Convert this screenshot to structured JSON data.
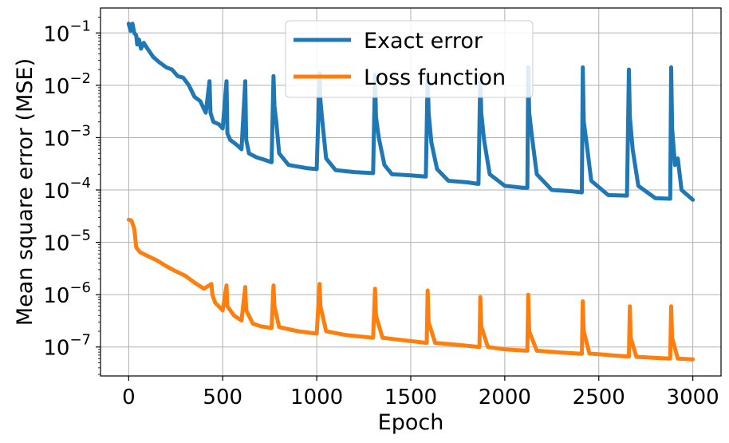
{
  "chart_data": {
    "type": "line",
    "title": "",
    "xlabel": "Epoch",
    "ylabel": "Mean square error (MSE)",
    "y_scale": "log",
    "grid": true,
    "legend_position": "top-center",
    "xlim": [
      -150,
      3150
    ],
    "ylim": [
      2.8e-08,
      0.3
    ],
    "x_ticks": [
      0,
      500,
      1000,
      1500,
      2000,
      2500,
      3000
    ],
    "x_tick_labels": [
      "0",
      "500",
      "1000",
      "1500",
      "2000",
      "2500",
      "3000"
    ],
    "y_ticks": [
      1e-07,
      1e-06,
      1e-05,
      0.0001,
      0.001,
      0.01,
      0.1
    ],
    "y_tick_labels": [
      {
        "base": "10",
        "exp": "−7"
      },
      {
        "base": "10",
        "exp": "−6"
      },
      {
        "base": "10",
        "exp": "−5"
      },
      {
        "base": "10",
        "exp": "−4"
      },
      {
        "base": "10",
        "exp": "−3"
      },
      {
        "base": "10",
        "exp": "−2"
      },
      {
        "base": "10",
        "exp": "−1"
      }
    ],
    "series": [
      {
        "name": "Exact error",
        "color": "#1f77b4",
        "points": [
          [
            0,
            0.15
          ],
          [
            10,
            0.11
          ],
          [
            20,
            0.15
          ],
          [
            30,
            0.1
          ],
          [
            40,
            0.09
          ],
          [
            45,
            0.06
          ],
          [
            55,
            0.075
          ],
          [
            65,
            0.05
          ],
          [
            80,
            0.065
          ],
          [
            100,
            0.05
          ],
          [
            130,
            0.035
          ],
          [
            160,
            0.028
          ],
          [
            200,
            0.022
          ],
          [
            230,
            0.02
          ],
          [
            260,
            0.015
          ],
          [
            290,
            0.014
          ],
          [
            320,
            0.01
          ],
          [
            350,
            0.006
          ],
          [
            380,
            0.005
          ],
          [
            410,
            0.003
          ],
          [
            430,
            0.012
          ],
          [
            435,
            0.003
          ],
          [
            450,
            0.002
          ],
          [
            480,
            0.0018
          ],
          [
            500,
            0.0015
          ],
          [
            520,
            0.012
          ],
          [
            525,
            0.0012
          ],
          [
            540,
            0.0009
          ],
          [
            560,
            0.0008
          ],
          [
            580,
            0.0007
          ],
          [
            600,
            0.0006
          ],
          [
            620,
            0.012
          ],
          [
            625,
            0.0009
          ],
          [
            640,
            0.0005
          ],
          [
            680,
            0.00042
          ],
          [
            720,
            0.00038
          ],
          [
            760,
            0.00034
          ],
          [
            770,
            0.015
          ],
          [
            775,
            0.004
          ],
          [
            785,
            0.002
          ],
          [
            800,
            0.0005
          ],
          [
            850,
            0.0003
          ],
          [
            900,
            0.00028
          ],
          [
            950,
            0.00026
          ],
          [
            1000,
            0.00025
          ],
          [
            1015,
            0.017
          ],
          [
            1020,
            0.005
          ],
          [
            1030,
            0.002
          ],
          [
            1050,
            0.0004
          ],
          [
            1100,
            0.00024
          ],
          [
            1200,
            0.00022
          ],
          [
            1300,
            0.00021
          ],
          [
            1310,
            0.016
          ],
          [
            1315,
            0.0025
          ],
          [
            1330,
            0.001
          ],
          [
            1360,
            0.0003
          ],
          [
            1400,
            0.0002
          ],
          [
            1500,
            0.00019
          ],
          [
            1580,
            0.00018
          ],
          [
            1590,
            0.016
          ],
          [
            1595,
            0.003
          ],
          [
            1610,
            0.0008
          ],
          [
            1640,
            0.00025
          ],
          [
            1700,
            0.00015
          ],
          [
            1800,
            0.00014
          ],
          [
            1860,
            0.00013
          ],
          [
            1870,
            0.016
          ],
          [
            1875,
            0.003
          ],
          [
            1890,
            0.0009
          ],
          [
            1920,
            0.0002
          ],
          [
            2000,
            0.00012
          ],
          [
            2100,
            0.00011
          ],
          [
            2120,
            0.00011
          ],
          [
            2125,
            0.022
          ],
          [
            2130,
            0.003
          ],
          [
            2145,
            0.001
          ],
          [
            2170,
            0.0002
          ],
          [
            2250,
            0.0001
          ],
          [
            2350,
            9.5e-05
          ],
          [
            2410,
            9e-05
          ],
          [
            2415,
            0.022
          ],
          [
            2420,
            0.002
          ],
          [
            2435,
            0.0008
          ],
          [
            2460,
            0.00015
          ],
          [
            2550,
            8e-05
          ],
          [
            2650,
            7.8e-05
          ],
          [
            2660,
            0.02
          ],
          [
            2665,
            0.0025
          ],
          [
            2680,
            0.0006
          ],
          [
            2710,
            0.00012
          ],
          [
            2800,
            7e-05
          ],
          [
            2880,
            6.8e-05
          ],
          [
            2885,
            0.022
          ],
          [
            2890,
            0.0015
          ],
          [
            2905,
            0.0003
          ],
          [
            2920,
            0.0004
          ],
          [
            2940,
            0.0001
          ],
          [
            3000,
            6.5e-05
          ]
        ]
      },
      {
        "name": "Loss function",
        "color": "#ff7f0e",
        "points": [
          [
            0,
            2.7e-05
          ],
          [
            15,
            2.6e-05
          ],
          [
            30,
            1.8e-05
          ],
          [
            40,
            8e-06
          ],
          [
            60,
            6.5e-06
          ],
          [
            100,
            5.5e-06
          ],
          [
            150,
            4.5e-06
          ],
          [
            200,
            3.5e-06
          ],
          [
            250,
            2.8e-06
          ],
          [
            300,
            2.3e-06
          ],
          [
            350,
            1.7e-06
          ],
          [
            400,
            1.3e-06
          ],
          [
            440,
            1.6e-06
          ],
          [
            445,
            1e-06
          ],
          [
            460,
            7e-07
          ],
          [
            500,
            5e-07
          ],
          [
            520,
            1.5e-06
          ],
          [
            525,
            6e-07
          ],
          [
            560,
            4e-07
          ],
          [
            600,
            3.2e-07
          ],
          [
            620,
            1.4e-06
          ],
          [
            625,
            5e-07
          ],
          [
            660,
            2.8e-07
          ],
          [
            700,
            2.5e-07
          ],
          [
            760,
            2.3e-07
          ],
          [
            770,
            1.5e-06
          ],
          [
            775,
            6e-07
          ],
          [
            800,
            2.4e-07
          ],
          [
            900,
            2e-07
          ],
          [
            1000,
            1.8e-07
          ],
          [
            1015,
            1.6e-06
          ],
          [
            1020,
            6e-07
          ],
          [
            1050,
            2e-07
          ],
          [
            1150,
            1.7e-07
          ],
          [
            1300,
            1.5e-07
          ],
          [
            1310,
            1.3e-06
          ],
          [
            1315,
            4e-07
          ],
          [
            1350,
            1.5e-07
          ],
          [
            1500,
            1.3e-07
          ],
          [
            1585,
            1.2e-07
          ],
          [
            1590,
            1.2e-06
          ],
          [
            1595,
            3e-07
          ],
          [
            1630,
            1.2e-07
          ],
          [
            1750,
            1.1e-07
          ],
          [
            1865,
            1e-07
          ],
          [
            1870,
            9e-07
          ],
          [
            1875,
            2.5e-07
          ],
          [
            1910,
            1e-07
          ],
          [
            2000,
            9e-08
          ],
          [
            2120,
            8.5e-08
          ],
          [
            2125,
            1e-06
          ],
          [
            2130,
            2e-07
          ],
          [
            2170,
            8.5e-08
          ],
          [
            2300,
            7.8e-08
          ],
          [
            2410,
            7.4e-08
          ],
          [
            2415,
            7.5e-07
          ],
          [
            2420,
            2e-07
          ],
          [
            2450,
            7.5e-08
          ],
          [
            2600,
            6.8e-08
          ],
          [
            2660,
            6.6e-08
          ],
          [
            2665,
            6e-07
          ],
          [
            2670,
            1.5e-07
          ],
          [
            2700,
            6.5e-08
          ],
          [
            2800,
            6.2e-08
          ],
          [
            2880,
            6e-08
          ],
          [
            2885,
            6e-07
          ],
          [
            2890,
            1.5e-07
          ],
          [
            2920,
            6e-08
          ],
          [
            3000,
            5.8e-08
          ]
        ]
      }
    ]
  }
}
